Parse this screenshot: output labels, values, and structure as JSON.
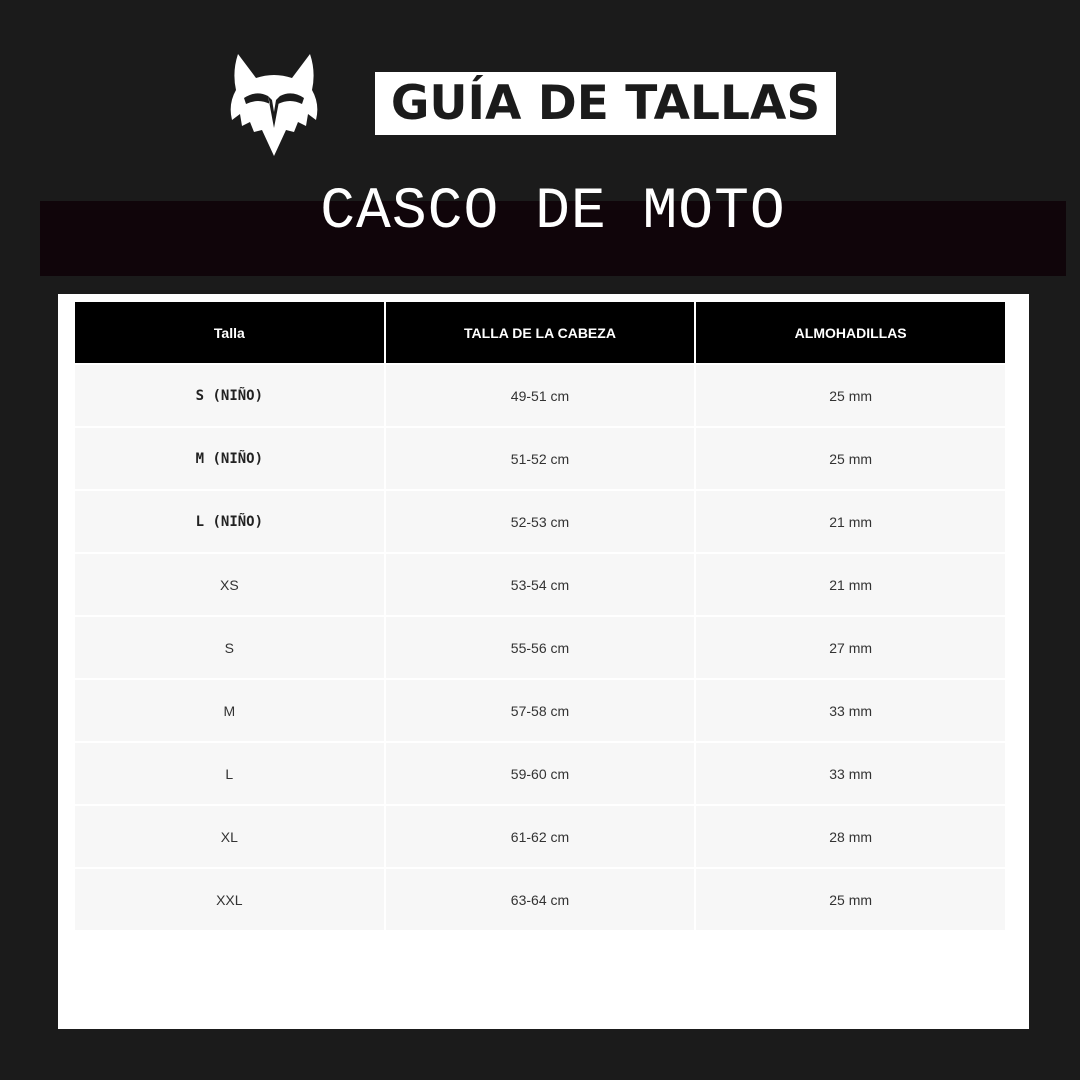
{
  "header": {
    "title": "GUÍA DE TALLAS",
    "subtitle": "CASCO DE MOTO",
    "logo_icon": "fox-head-icon"
  },
  "table": {
    "columns": [
      "Talla",
      "TALLA DE LA CABEZA",
      "ALMOHADILLAS"
    ],
    "rows": [
      [
        "S (NIÑO)",
        "49-51 cm",
        "25 mm"
      ],
      [
        "M (NIÑO)",
        "51-52 cm",
        "25 mm"
      ],
      [
        "L (NIÑO)",
        "52-53 cm",
        "21 mm"
      ],
      [
        "XS",
        "53-54 cm",
        "21 mm"
      ],
      [
        "S",
        "55-56 cm",
        "27 mm"
      ],
      [
        "M",
        "57-58 cm",
        "33 mm"
      ],
      [
        "L",
        "59-60 cm",
        "33 mm"
      ],
      [
        "XL",
        "61-62 cm",
        "28 mm"
      ],
      [
        "XXL",
        "63-64 cm",
        "25 mm"
      ]
    ]
  },
  "colors": {
    "background": "#1b1b1b",
    "band": "#10050a",
    "header_cell": "#000000",
    "row_cell": "#f7f7f7"
  }
}
